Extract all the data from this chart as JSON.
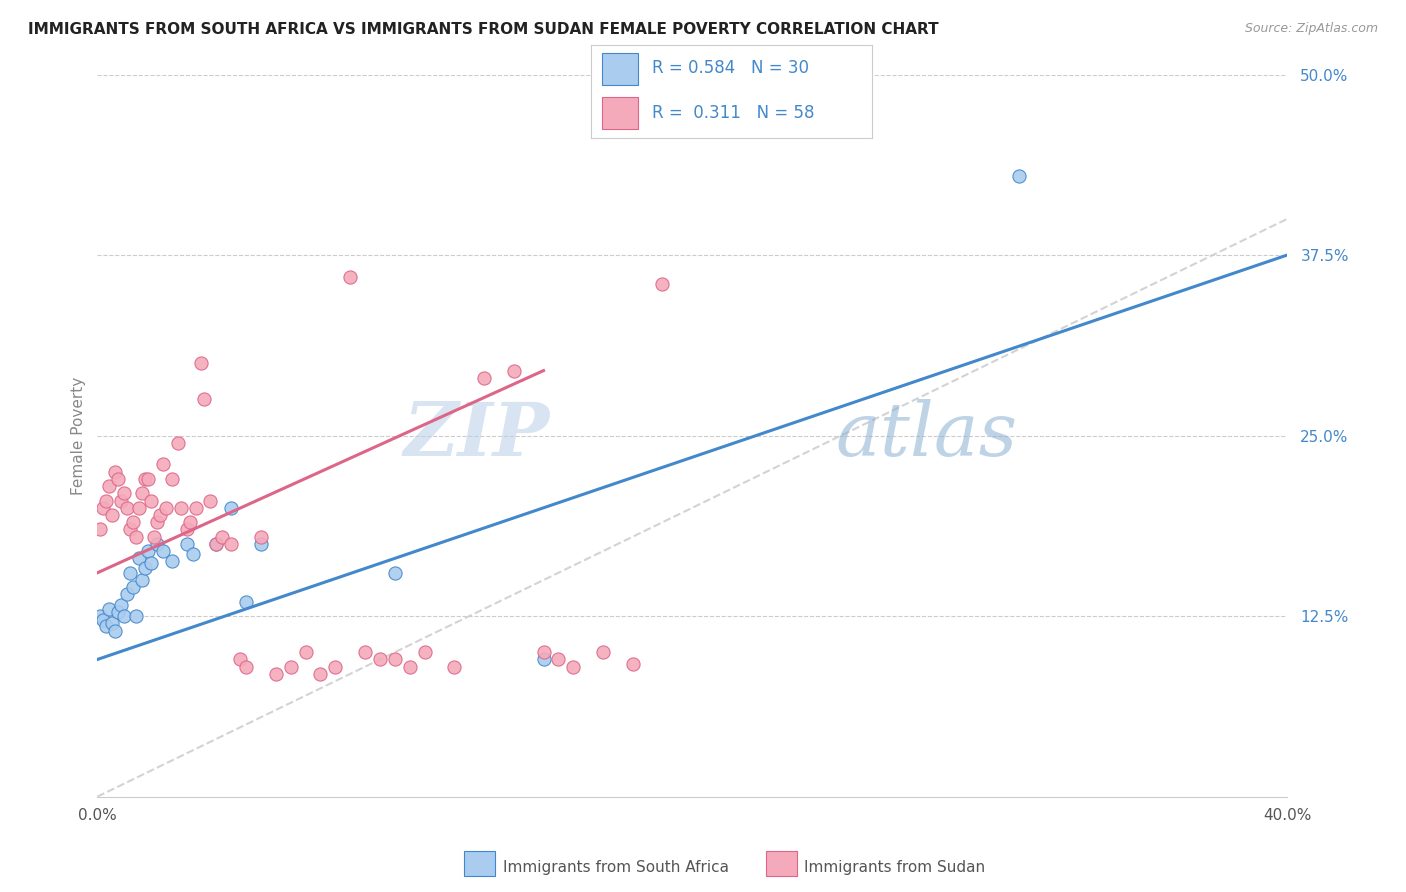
{
  "title": "IMMIGRANTS FROM SOUTH AFRICA VS IMMIGRANTS FROM SUDAN FEMALE POVERTY CORRELATION CHART",
  "source": "Source: ZipAtlas.com",
  "ylabel": "Female Poverty",
  "legend_label1": "Immigrants from South Africa",
  "legend_label2": "Immigrants from Sudan",
  "r1": "0.584",
  "n1": "30",
  "r2": "0.311",
  "n2": "58",
  "color_blue": "#aaccee",
  "color_pink": "#f4aabb",
  "color_blue_line": "#4488cc",
  "color_pink_line": "#dd6688",
  "color_dashed": "#cccccc",
  "watermark_zip": "ZIP",
  "watermark_atlas": "atlas",
  "blue_line_x0": 0.0,
  "blue_line_y0": 0.095,
  "blue_line_x1": 0.4,
  "blue_line_y1": 0.375,
  "pink_line_x0": 0.0,
  "pink_line_y0": 0.155,
  "pink_line_x1": 0.15,
  "pink_line_y1": 0.295,
  "blue_scatter_x": [
    0.001,
    0.002,
    0.003,
    0.004,
    0.005,
    0.006,
    0.007,
    0.008,
    0.009,
    0.01,
    0.011,
    0.012,
    0.013,
    0.014,
    0.015,
    0.016,
    0.017,
    0.018,
    0.02,
    0.022,
    0.025,
    0.03,
    0.032,
    0.04,
    0.045,
    0.05,
    0.055,
    0.1,
    0.15,
    0.31
  ],
  "blue_scatter_y": [
    0.125,
    0.122,
    0.118,
    0.13,
    0.12,
    0.115,
    0.128,
    0.133,
    0.125,
    0.14,
    0.155,
    0.145,
    0.125,
    0.165,
    0.15,
    0.158,
    0.17,
    0.162,
    0.175,
    0.17,
    0.163,
    0.175,
    0.168,
    0.175,
    0.2,
    0.135,
    0.175,
    0.155,
    0.095,
    0.43
  ],
  "pink_scatter_x": [
    0.001,
    0.002,
    0.003,
    0.004,
    0.005,
    0.006,
    0.007,
    0.008,
    0.009,
    0.01,
    0.011,
    0.012,
    0.013,
    0.014,
    0.015,
    0.016,
    0.017,
    0.018,
    0.019,
    0.02,
    0.021,
    0.022,
    0.023,
    0.025,
    0.027,
    0.028,
    0.03,
    0.031,
    0.033,
    0.035,
    0.036,
    0.038,
    0.04,
    0.042,
    0.045,
    0.048,
    0.05,
    0.055,
    0.06,
    0.065,
    0.07,
    0.075,
    0.08,
    0.085,
    0.09,
    0.095,
    0.1,
    0.105,
    0.11,
    0.12,
    0.13,
    0.14,
    0.15,
    0.155,
    0.16,
    0.17,
    0.18,
    0.19
  ],
  "pink_scatter_y": [
    0.185,
    0.2,
    0.205,
    0.215,
    0.195,
    0.225,
    0.22,
    0.205,
    0.21,
    0.2,
    0.185,
    0.19,
    0.18,
    0.2,
    0.21,
    0.22,
    0.22,
    0.205,
    0.18,
    0.19,
    0.195,
    0.23,
    0.2,
    0.22,
    0.245,
    0.2,
    0.185,
    0.19,
    0.2,
    0.3,
    0.275,
    0.205,
    0.175,
    0.18,
    0.175,
    0.095,
    0.09,
    0.18,
    0.085,
    0.09,
    0.1,
    0.085,
    0.09,
    0.36,
    0.1,
    0.095,
    0.095,
    0.09,
    0.1,
    0.09,
    0.29,
    0.295,
    0.1,
    0.095,
    0.09,
    0.1,
    0.092,
    0.355
  ],
  "xlim": [
    0.0,
    0.4
  ],
  "ylim": [
    0.0,
    0.5
  ],
  "yticks": [
    0.125,
    0.25,
    0.375,
    0.5
  ],
  "ytick_labels": [
    "12.5%",
    "25.0%",
    "37.5%",
    "50.0%"
  ]
}
